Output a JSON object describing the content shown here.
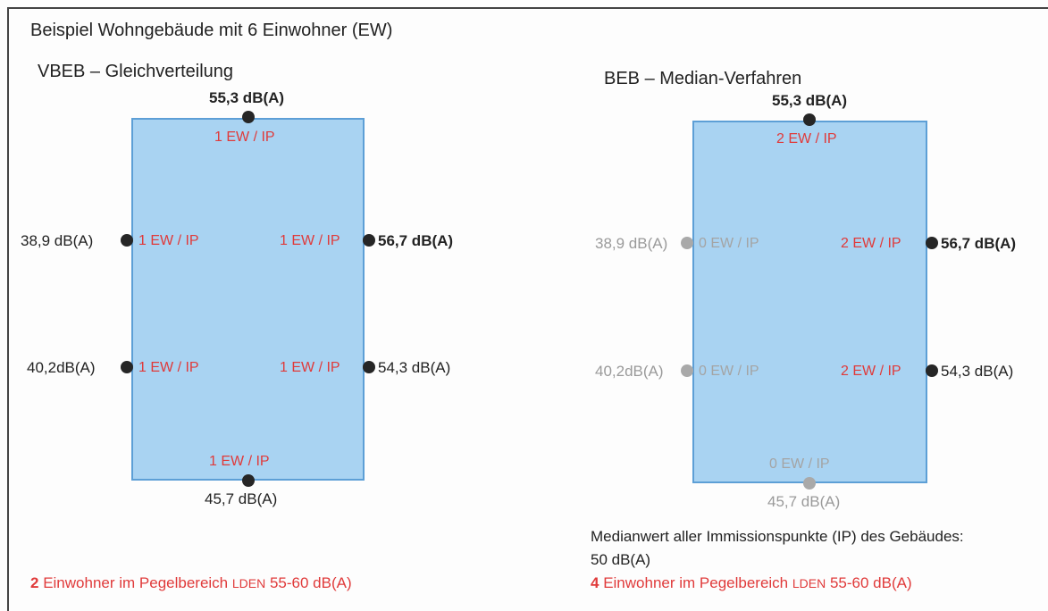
{
  "title": "Beispiel Wohngebäude mit 6 Einwohner (EW)",
  "colors": {
    "building_fill": "#a9d3f2",
    "building_border": "#5d9fd6",
    "ew_label": "#e03a3a",
    "muted": "#9a9a9a",
    "dot": "#262626"
  },
  "left": {
    "heading": "VBEB – Gleichverteilung",
    "points": {
      "top": {
        "level": "55,3 dB(A)",
        "ew": "1 EW / IP"
      },
      "left_upper": {
        "level": "38,9 dB(A)",
        "ew": "1 EW / IP"
      },
      "right_upper": {
        "level": "56,7 dB(A)",
        "ew": "1 EW / IP"
      },
      "left_lower": {
        "level": "40,2dB(A)",
        "ew": "1 EW / IP"
      },
      "right_lower": {
        "level": "54,3 dB(A)",
        "ew": "1 EW / IP"
      },
      "bottom": {
        "level": "45,7 dB(A)",
        "ew": "1 EW / IP"
      }
    },
    "summary": {
      "count": "2",
      "text": " Einwohner im Pegelbereich ",
      "lden": "LDEN",
      "range": " 55-60 dB(A)"
    }
  },
  "right": {
    "heading": "BEB – Median-Verfahren",
    "points": {
      "top": {
        "level": "55,3 dB(A)",
        "ew": "2 EW / IP"
      },
      "left_upper": {
        "level": "38,9 dB(A)",
        "ew": "0 EW / IP"
      },
      "right_upper": {
        "level": "56,7 dB(A)",
        "ew": "2 EW / IP"
      },
      "left_lower": {
        "level": "40,2dB(A)",
        "ew": "0 EW / IP"
      },
      "right_lower": {
        "level": "54,3 dB(A)",
        "ew": "2 EW / IP"
      },
      "bottom": {
        "level": "45,7 dB(A)",
        "ew": "0 EW / IP"
      }
    },
    "median_line1": "Medianwert aller Immissionspunkte (IP) des Gebäudes:",
    "median_line2": "50 dB(A)",
    "summary": {
      "count": "4",
      "text": " Einwohner im Pegelbereich ",
      "lden": "LDEN",
      "range": " 55-60 dB(A)"
    }
  }
}
